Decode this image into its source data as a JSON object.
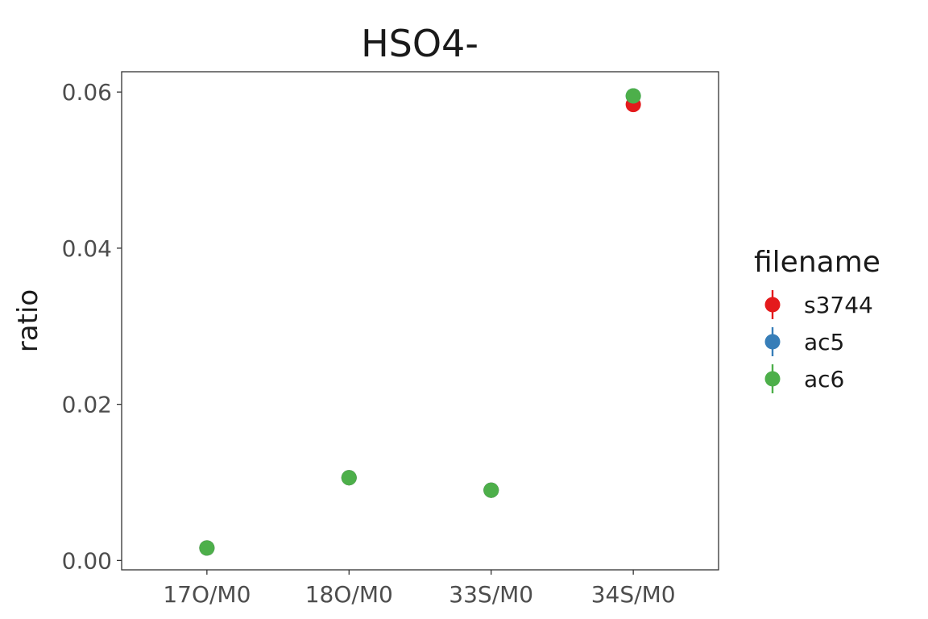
{
  "chart_data": {
    "type": "scatter",
    "title": "HSO4-",
    "xlabel": "",
    "ylabel": "ratio",
    "categories": [
      "17O/M0",
      "18O/M0",
      "33S/M0",
      "34S/M0"
    ],
    "ylim": [
      -0.0012,
      0.0626
    ],
    "yticks": [
      0.0,
      0.02,
      0.04,
      0.06
    ],
    "ytick_labels": [
      "0.00",
      "0.02",
      "0.04",
      "0.06"
    ],
    "grid": false,
    "legend": {
      "title": "filename",
      "placement": "right"
    },
    "series": [
      {
        "name": "s3744",
        "color": "#e41a1c",
        "values": [
          0.0016,
          0.0106,
          0.009,
          0.0584
        ]
      },
      {
        "name": "ac5",
        "color": "#377eb8",
        "values": [
          0.0016,
          0.0106,
          0.009,
          0.0595
        ]
      },
      {
        "name": "ac6",
        "color": "#4daf4a",
        "values": [
          0.0016,
          0.0106,
          0.009,
          0.0595
        ]
      }
    ]
  }
}
